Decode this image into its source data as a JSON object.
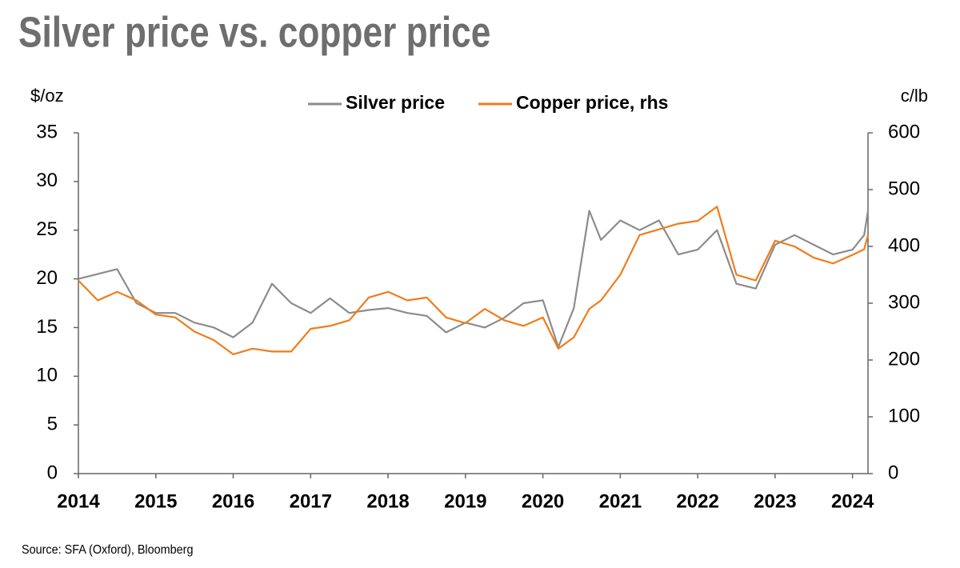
{
  "chart_data": {
    "type": "line",
    "title": "Silver price vs. copper price",
    "y_label": "$/oz",
    "y2_label": "c/lb",
    "source": "Source: SFA (Oxford), Bloomberg",
    "x": [
      2014.0,
      2014.25,
      2014.5,
      2014.75,
      2015.0,
      2015.25,
      2015.5,
      2015.75,
      2016.0,
      2016.25,
      2016.5,
      2016.75,
      2017.0,
      2017.25,
      2017.5,
      2017.75,
      2018.0,
      2018.25,
      2018.5,
      2018.75,
      2019.0,
      2019.25,
      2019.5,
      2019.75,
      2020.0,
      2020.2,
      2020.4,
      2020.6,
      2020.75,
      2021.0,
      2021.25,
      2021.5,
      2021.75,
      2022.0,
      2022.25,
      2022.5,
      2022.75,
      2023.0,
      2023.25,
      2023.5,
      2023.75,
      2024.0,
      2024.15,
      2024.2
    ],
    "series": [
      {
        "name": "Silver price",
        "color": "#8c8c8c",
        "axis": "y",
        "values": [
          20,
          20.5,
          21,
          17.5,
          16.5,
          16.5,
          15.5,
          15,
          14,
          15.5,
          19.5,
          17.5,
          16.5,
          18,
          16.5,
          16.8,
          17,
          16.5,
          16.2,
          14.5,
          15.5,
          15,
          16,
          17.5,
          17.8,
          13,
          17,
          27,
          24,
          26,
          25,
          26,
          22.5,
          23,
          25,
          19.5,
          19,
          23.5,
          24.5,
          23.5,
          22.5,
          23,
          24.5,
          27
        ]
      },
      {
        "name": "Copper price, rhs",
        "color": "#f07d1a",
        "axis": "y2",
        "values": [
          340,
          305,
          320,
          305,
          280,
          275,
          250,
          235,
          210,
          220,
          215,
          215,
          255,
          260,
          270,
          310,
          320,
          305,
          310,
          275,
          265,
          290,
          270,
          260,
          275,
          220,
          240,
          290,
          305,
          350,
          420,
          430,
          440,
          445,
          470,
          350,
          340,
          410,
          400,
          380,
          370,
          385,
          395,
          420
        ]
      }
    ],
    "xlim": [
      2014,
      2024.2
    ],
    "xticks": [
      2014,
      2015,
      2016,
      2017,
      2018,
      2019,
      2020,
      2021,
      2022,
      2023,
      2024
    ],
    "ylim": [
      0,
      35
    ],
    "yticks": [
      0,
      5,
      10,
      15,
      20,
      25,
      30,
      35
    ],
    "y2lim": [
      0,
      600
    ],
    "y2ticks": [
      0,
      100,
      200,
      300,
      400,
      500,
      600
    ],
    "grid": false
  }
}
